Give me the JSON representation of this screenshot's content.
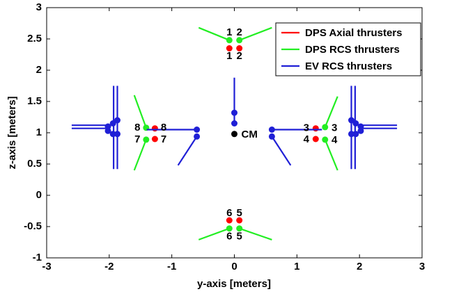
{
  "chart_data": {
    "type": "scatter",
    "x_label": "y-axis [meters]",
    "y_label": "z-axis [meters]",
    "xlim": [
      -3,
      3
    ],
    "ylim": [
      -1,
      3
    ],
    "xticks": [
      -3,
      -2,
      -1,
      0,
      1,
      2,
      3
    ],
    "yticks": [
      -1,
      -0.5,
      0,
      0.5,
      1,
      1.5,
      2,
      2.5,
      3
    ],
    "legend": "ne",
    "series": [
      {
        "name": "DPS Axial thrusters",
        "color": "#ff0000",
        "x": [
          -0.08,
          0.08,
          1.3,
          1.3,
          0.08,
          -0.08,
          -1.27,
          -1.27
        ],
        "y": [
          2.35,
          2.35,
          1.07,
          0.9,
          -0.4,
          -0.4,
          0.9,
          1.07
        ],
        "line_x": [],
        "line_y": []
      },
      {
        "name": "DPS RCS thrusters",
        "color": "#22ee22",
        "x": [
          -0.08,
          0.08,
          1.45,
          1.45,
          0.08,
          -0.08,
          -1.41,
          -1.41
        ],
        "y": [
          2.48,
          2.48,
          1.09,
          0.89,
          -0.53,
          -0.53,
          0.89,
          1.08
        ],
        "line_x": [
          -0.08,
          -0.57,
          null,
          0.08,
          0.6,
          null,
          1.45,
          1.65,
          null,
          1.45,
          1.65,
          null,
          0.08,
          0.6,
          null,
          -0.08,
          -0.57,
          null,
          -1.41,
          -1.6,
          null,
          -1.41,
          -1.6
        ],
        "line_y": [
          2.48,
          2.68,
          null,
          2.48,
          2.68,
          null,
          1.09,
          1.58,
          null,
          0.89,
          0.4,
          null,
          -0.53,
          -0.71,
          null,
          -0.53,
          -0.71,
          null,
          0.89,
          0.4,
          null,
          1.08,
          1.6
        ]
      },
      {
        "name": "EV RCS thrusters",
        "color": "#1f1fd6",
        "x": [
          0,
          0,
          -0.6,
          -0.6,
          0.6,
          0.6,
          -1.87,
          -1.94,
          -2.02,
          -2.02,
          -1.94,
          -1.87,
          1.87,
          1.94,
          2.02,
          2.02,
          1.94,
          1.87
        ],
        "y": [
          1.32,
          1.15,
          1.05,
          0.94,
          1.05,
          0.94,
          1.2,
          1.15,
          1.1,
          1.03,
          0.98,
          0.98,
          1.2,
          1.15,
          1.1,
          1.03,
          0.98,
          0.98
        ],
        "line_x": [
          0,
          0,
          null,
          -1.4,
          -0.6,
          null,
          -0.6,
          -0.9,
          null,
          1.4,
          0.6,
          null,
          0.6,
          0.9,
          null,
          -1.93,
          -1.93,
          null,
          -1.87,
          -1.87,
          null,
          -2.6,
          -2.0,
          null,
          -2.6,
          -2.0,
          null,
          1.93,
          1.93,
          null,
          1.87,
          1.87,
          null,
          2.6,
          2.0,
          null,
          2.6,
          2.0
        ],
        "line_y": [
          1.15,
          1.88,
          null,
          1.05,
          1.05,
          null,
          0.94,
          0.48,
          null,
          1.05,
          1.05,
          null,
          0.94,
          0.48,
          null,
          1.75,
          0.42,
          null,
          1.75,
          0.42,
          null,
          1.12,
          1.12,
          null,
          1.07,
          1.07,
          null,
          1.75,
          0.42,
          null,
          1.75,
          0.42,
          null,
          1.12,
          1.12,
          null,
          1.07,
          1.07
        ]
      }
    ],
    "cm": {
      "label": "CM",
      "x": 0,
      "y": 0.98,
      "color": "#000000"
    },
    "annotations": [
      {
        "text": "1",
        "x": -0.08,
        "y": 2.6
      },
      {
        "text": "2",
        "x": 0.08,
        "y": 2.6
      },
      {
        "text": "1",
        "x": -0.08,
        "y": 2.22
      },
      {
        "text": "2",
        "x": 0.08,
        "y": 2.22
      },
      {
        "text": "3",
        "x": 1.15,
        "y": 1.07
      },
      {
        "text": "3",
        "x": 1.6,
        "y": 1.07
      },
      {
        "text": "4",
        "x": 1.15,
        "y": 0.89
      },
      {
        "text": "4",
        "x": 1.6,
        "y": 0.88
      },
      {
        "text": "6",
        "x": -0.08,
        "y": -0.29
      },
      {
        "text": "5",
        "x": 0.08,
        "y": -0.29
      },
      {
        "text": "6",
        "x": -0.08,
        "y": -0.66
      },
      {
        "text": "5",
        "x": 0.08,
        "y": -0.66
      },
      {
        "text": "8",
        "x": -1.55,
        "y": 1.08
      },
      {
        "text": "8",
        "x": -1.13,
        "y": 1.08
      },
      {
        "text": "7",
        "x": -1.55,
        "y": 0.89
      },
      {
        "text": "7",
        "x": -1.13,
        "y": 0.89
      }
    ]
  }
}
